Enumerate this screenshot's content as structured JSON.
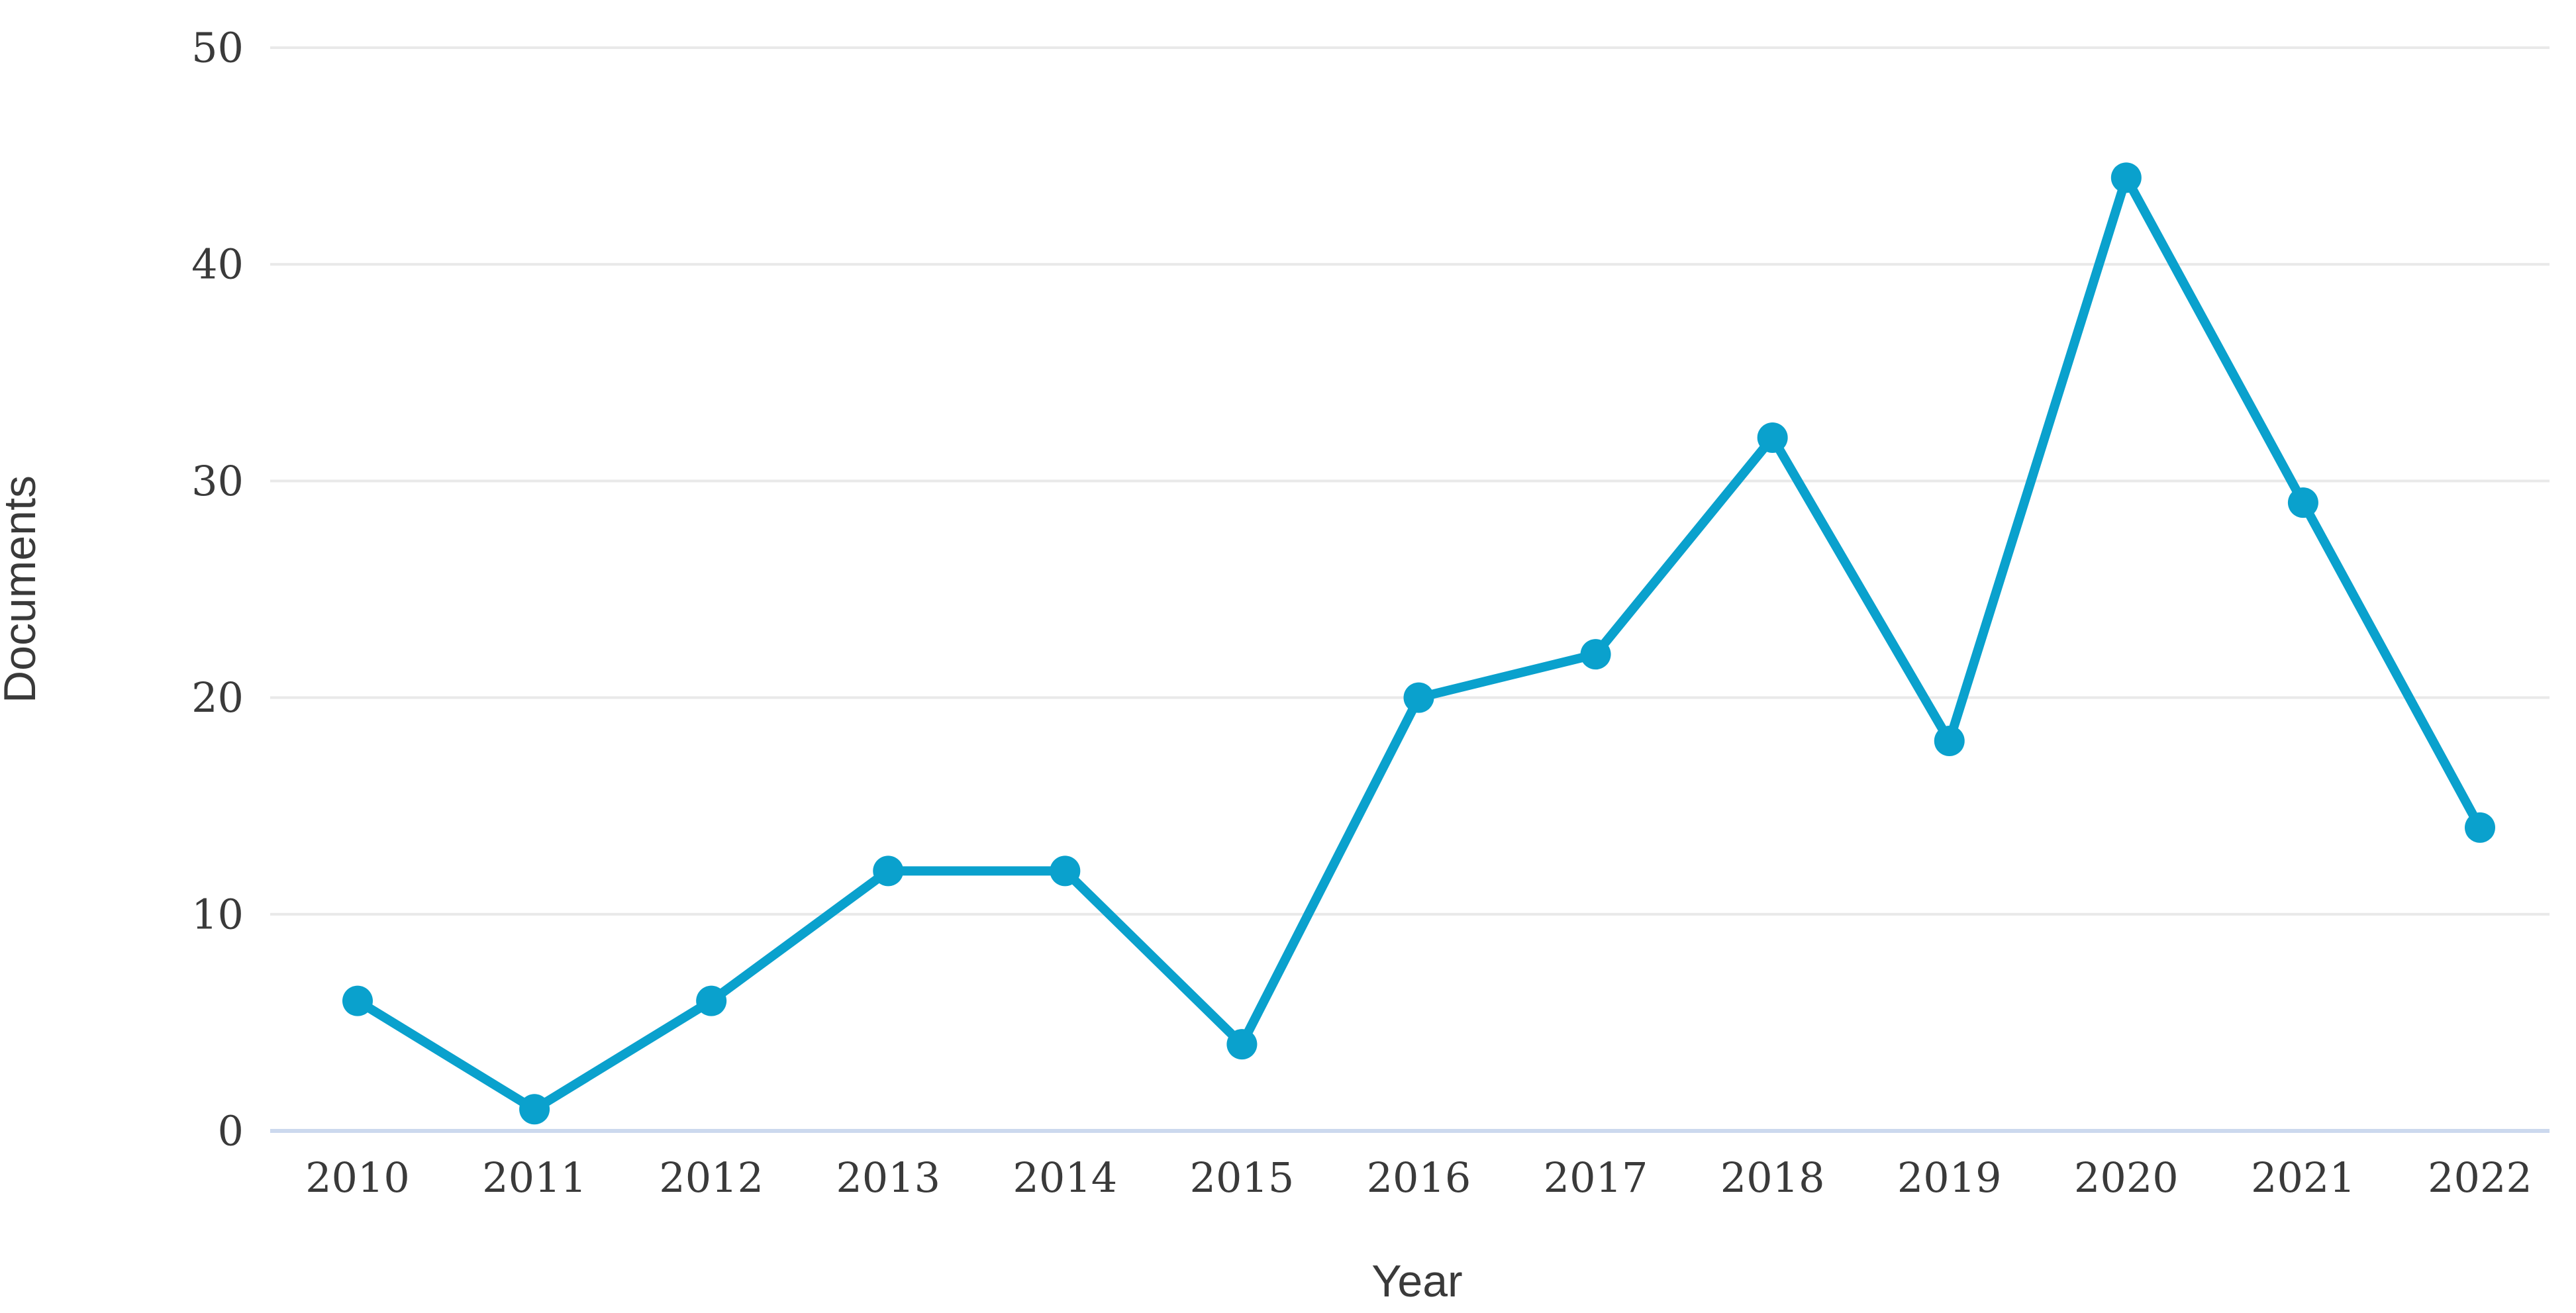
{
  "chart_data": {
    "type": "line",
    "title": "",
    "xlabel": "Year",
    "ylabel": "Documents",
    "categories": [
      "2010",
      "2011",
      "2012",
      "2013",
      "2014",
      "2015",
      "2016",
      "2017",
      "2018",
      "2019",
      "2020",
      "2021",
      "2022"
    ],
    "series": [
      {
        "name": "Documents",
        "values": [
          6,
          1,
          6,
          12,
          12,
          4,
          20,
          22,
          32,
          18,
          44,
          29,
          14
        ]
      }
    ],
    "ylim": [
      0,
      50
    ],
    "yticks": [
      0,
      10,
      20,
      30,
      40,
      50
    ],
    "grid": "horizontal gridlines on, vertical off",
    "legend_position": "none",
    "line_color": "#0aa1cd",
    "marker_color": "#0aa1cd",
    "gridline_color": "#e9e9e9",
    "baseline_color": "#ccd9ee",
    "tick_text_color": "#3a3a3a"
  }
}
